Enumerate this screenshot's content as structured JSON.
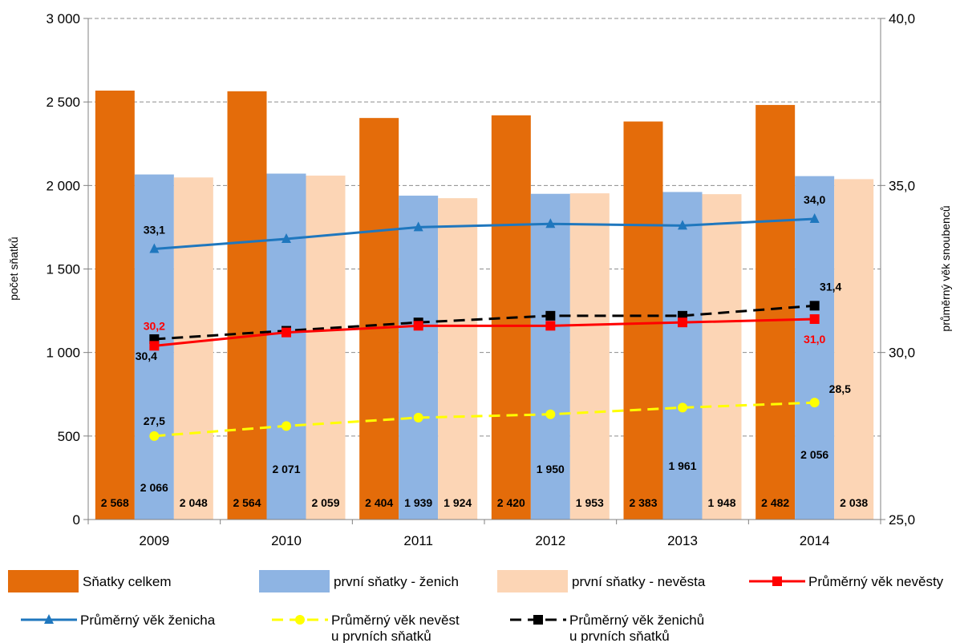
{
  "chart_data": {
    "type": "bar",
    "categories": [
      "2009",
      "2010",
      "2011",
      "2012",
      "2013",
      "2014"
    ],
    "y_left": {
      "label": "počet sňatků",
      "range": [
        0,
        3000
      ],
      "ticks": [
        "0",
        "500",
        "1 000",
        "1 500",
        "2 000",
        "2 500",
        "3 000"
      ]
    },
    "y_right": {
      "label": "průměrný věk snoubenců",
      "range": [
        25,
        40
      ],
      "ticks": [
        "25,0",
        "30,0",
        "35,0",
        "40,0"
      ]
    },
    "grid": "horizontal-dashed",
    "legend_position": "bottom",
    "bar_series": [
      {
        "name": "Sňatky celkem",
        "color": "#E46C0A",
        "values": [
          2568,
          2564,
          2404,
          2420,
          2383,
          2482
        ],
        "labels": [
          "2 568",
          "2 564",
          "2 404",
          "2 420",
          "2 383",
          "2 482"
        ]
      },
      {
        "name": "první sňatky - ženich",
        "color": "#8EB4E3",
        "values": [
          2066,
          2071,
          1939,
          1950,
          1961,
          2056
        ],
        "labels": [
          "2 066",
          "2 071",
          "1 939",
          "1 950",
          "1 961",
          "2 056"
        ]
      },
      {
        "name": "první sňatky - nevěsta",
        "color": "#FCD5B5",
        "values": [
          2048,
          2059,
          1924,
          1953,
          1948,
          2038
        ],
        "labels": [
          "2 048",
          "2 059",
          "1 924",
          "1 953",
          "1 948",
          "2 038"
        ]
      }
    ],
    "line_series": [
      {
        "name": "Průměrný věk nevěsty",
        "color": "#FF0000",
        "label_color": "#FF0000",
        "marker": "square",
        "dash": "solid",
        "values": [
          30.2,
          30.6,
          30.8,
          30.8,
          30.9,
          31.0
        ],
        "labels": [
          "30,2",
          "",
          "",
          "",
          "",
          "31,0"
        ]
      },
      {
        "name": "Průměrný věk ženicha",
        "color": "#1F77BE",
        "label_color": "#000000",
        "marker": "triangle",
        "dash": "solid",
        "values": [
          33.1,
          33.4,
          33.75,
          33.85,
          33.8,
          34.0
        ],
        "labels": [
          "33,1",
          "",
          "",
          "",
          "",
          "34,0"
        ]
      },
      {
        "name": "Průměrný věk nevěst\nu  prvních sňatků",
        "color": "#FFFF00",
        "label_color": "#000000",
        "marker": "circle",
        "dash": "dashed",
        "values": [
          27.5,
          27.8,
          28.05,
          28.15,
          28.35,
          28.5
        ],
        "labels": [
          "27,5",
          "",
          "",
          "",
          "",
          "28,5"
        ]
      },
      {
        "name": "Průměrný věk ženichů\nu prvních sňatků",
        "color": "#000000",
        "label_color": "#000000",
        "marker": "square",
        "dash": "dashed",
        "values": [
          30.4,
          30.65,
          30.9,
          31.1,
          31.1,
          31.4
        ],
        "labels": [
          "30,4",
          "",
          "",
          "",
          "",
          "31,4"
        ]
      }
    ]
  }
}
